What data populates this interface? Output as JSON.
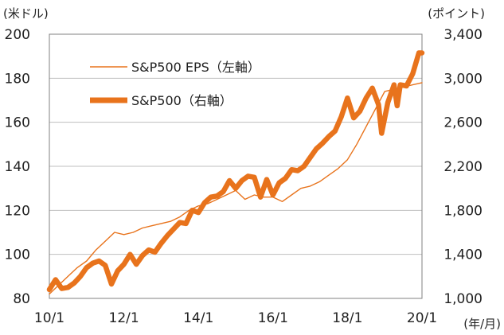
{
  "chart_data": {
    "type": "line",
    "title": "",
    "left_unit": "(米ドル)",
    "right_unit": "(ポイント)",
    "x_unit": "(年/月)",
    "x_ticks": [
      "10/1",
      "12/1",
      "14/1",
      "16/1",
      "18/1",
      "20/1"
    ],
    "x_range": [
      "2010-01",
      "2020-01"
    ],
    "y_left": {
      "ylim": [
        80,
        200
      ],
      "ticks": [
        "80",
        "100",
        "120",
        "140",
        "160",
        "180",
        "200"
      ]
    },
    "y_right": {
      "ylim": [
        1000,
        3400
      ],
      "ticks": [
        "1,000",
        "1,400",
        "1,800",
        "2,200",
        "2,600",
        "3,000",
        "3,400"
      ]
    },
    "grid": true,
    "legend": {
      "eps_label": "S&P500 EPS（左軸）",
      "index_label": "S&P500（右軸）"
    },
    "colors": {
      "series": "#e8731c",
      "grid": "#bfbfbf",
      "axis": "#808080"
    },
    "series": [
      {
        "name": "S&P500 EPS（左軸）",
        "axis": "left",
        "points": [
          [
            "2010-01",
            82
          ],
          [
            "2010-04",
            86
          ],
          [
            "2010-07",
            90
          ],
          [
            "2010-10",
            94
          ],
          [
            "2011-01",
            97
          ],
          [
            "2011-04",
            102
          ],
          [
            "2011-07",
            106
          ],
          [
            "2011-10",
            110
          ],
          [
            "2012-01",
            109
          ],
          [
            "2012-04",
            110
          ],
          [
            "2012-07",
            112
          ],
          [
            "2012-10",
            113
          ],
          [
            "2013-01",
            114
          ],
          [
            "2013-04",
            115
          ],
          [
            "2013-07",
            117
          ],
          [
            "2013-10",
            120
          ],
          [
            "2014-01",
            122
          ],
          [
            "2014-04",
            123
          ],
          [
            "2014-07",
            125
          ],
          [
            "2014-10",
            127
          ],
          [
            "2015-01",
            129
          ],
          [
            "2015-04",
            125
          ],
          [
            "2015-07",
            127
          ],
          [
            "2015-10",
            126
          ],
          [
            "2016-01",
            126
          ],
          [
            "2016-04",
            124
          ],
          [
            "2016-07",
            127
          ],
          [
            "2016-10",
            130
          ],
          [
            "2017-01",
            131
          ],
          [
            "2017-04",
            133
          ],
          [
            "2017-07",
            136
          ],
          [
            "2017-10",
            139
          ],
          [
            "2018-01",
            143
          ],
          [
            "2018-04",
            150
          ],
          [
            "2018-07",
            158
          ],
          [
            "2018-10",
            166
          ],
          [
            "2019-01",
            174
          ],
          [
            "2019-04",
            175
          ],
          [
            "2019-07",
            176
          ],
          [
            "2019-10",
            177
          ],
          [
            "2020-01",
            178
          ]
        ]
      },
      {
        "name": "S&P500（右軸）",
        "axis": "right",
        "points": [
          [
            "2010-01",
            1080
          ],
          [
            "2010-03",
            1170
          ],
          [
            "2010-05",
            1090
          ],
          [
            "2010-07",
            1100
          ],
          [
            "2010-09",
            1140
          ],
          [
            "2010-11",
            1200
          ],
          [
            "2011-01",
            1280
          ],
          [
            "2011-03",
            1320
          ],
          [
            "2011-05",
            1340
          ],
          [
            "2011-07",
            1300
          ],
          [
            "2011-09",
            1130
          ],
          [
            "2011-11",
            1250
          ],
          [
            "2012-01",
            1310
          ],
          [
            "2012-03",
            1400
          ],
          [
            "2012-05",
            1310
          ],
          [
            "2012-07",
            1390
          ],
          [
            "2012-09",
            1440
          ],
          [
            "2012-11",
            1420
          ],
          [
            "2013-01",
            1500
          ],
          [
            "2013-03",
            1570
          ],
          [
            "2013-05",
            1630
          ],
          [
            "2013-07",
            1690
          ],
          [
            "2013-09",
            1680
          ],
          [
            "2013-11",
            1800
          ],
          [
            "2014-01",
            1780
          ],
          [
            "2014-03",
            1870
          ],
          [
            "2014-05",
            1920
          ],
          [
            "2014-07",
            1930
          ],
          [
            "2014-09",
            1970
          ],
          [
            "2014-11",
            2070
          ],
          [
            "2015-01",
            2000
          ],
          [
            "2015-03",
            2070
          ],
          [
            "2015-05",
            2110
          ],
          [
            "2015-07",
            2100
          ],
          [
            "2015-09",
            1920
          ],
          [
            "2015-11",
            2080
          ],
          [
            "2016-01",
            1940
          ],
          [
            "2016-03",
            2050
          ],
          [
            "2016-05",
            2090
          ],
          [
            "2016-07",
            2170
          ],
          [
            "2016-09",
            2160
          ],
          [
            "2016-11",
            2200
          ],
          [
            "2017-01",
            2280
          ],
          [
            "2017-03",
            2360
          ],
          [
            "2017-05",
            2410
          ],
          [
            "2017-07",
            2470
          ],
          [
            "2017-09",
            2520
          ],
          [
            "2017-11",
            2650
          ],
          [
            "2018-01",
            2820
          ],
          [
            "2018-03",
            2640
          ],
          [
            "2018-05",
            2700
          ],
          [
            "2018-07",
            2820
          ],
          [
            "2018-09",
            2910
          ],
          [
            "2018-11",
            2760
          ],
          [
            "2018-12",
            2500
          ],
          [
            "2019-02",
            2780
          ],
          [
            "2019-04",
            2940
          ],
          [
            "2019-05",
            2750
          ],
          [
            "2019-06",
            2940
          ],
          [
            "2019-08",
            2930
          ],
          [
            "2019-10",
            3040
          ],
          [
            "2019-12",
            3230
          ],
          [
            "2020-01",
            3230
          ]
        ]
      }
    ]
  }
}
